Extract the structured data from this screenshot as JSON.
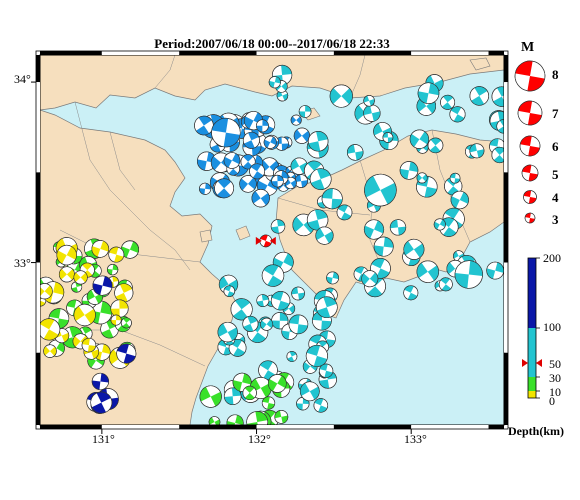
{
  "title": "Period:2007/06/18 00:00--2017/06/18 22:33",
  "map": {
    "lat_labels": [
      "34°",
      "33°"
    ],
    "lon_labels": [
      "131°",
      "132°",
      "133°"
    ],
    "colors": {
      "sea": "#cbf0f6",
      "land": "#f6dfbe",
      "coast": "#7a7a7a",
      "depth_0_10": "#f2e400",
      "depth_10_30": "#39e02a",
      "depth_30_100": "#22c4d0",
      "depth_30_100_dark": "#1a8fe0",
      "depth_100_200": "#0a17a8",
      "latest": "#ff0000"
    }
  },
  "magnitude_legend": {
    "heading": "M",
    "labels": [
      "8",
      "7",
      "6",
      "5",
      "4",
      "3"
    ]
  },
  "depth_legend": {
    "tick_labels": [
      "200",
      "100",
      "50",
      "30",
      "10",
      "0"
    ],
    "axis_label": "Depth(km)"
  },
  "chart_data": {
    "type": "map",
    "title": "Period:2007/06/18 00:00--2017/06/18 22:33",
    "lon_range": [
      130.6,
      133.6
    ],
    "lat_range": [
      32.1,
      34.15
    ],
    "lat_ticks": [
      34,
      33
    ],
    "lon_ticks": [
      131,
      132,
      133
    ],
    "legend": "right",
    "latest_event": {
      "lon": 132.06,
      "lat": 33.12
    },
    "clusters": [
      {
        "name": "",
        "depth_class": "30-100",
        "color": "#1a8fe0",
        "lon": [
          131.6,
          132.3
        ],
        "lat": [
          33.35,
          33.8
        ],
        "count": 55
      },
      {
        "name": "",
        "depth_class": "30-100",
        "color": "#22c4d0",
        "lon": [
          132.1,
          133.6
        ],
        "lat": [
          32.8,
          34.05
        ],
        "count": 75
      },
      {
        "name": "",
        "depth_class": "30-100",
        "color": "#22c4d0",
        "lon": [
          131.8,
          132.5
        ],
        "lat": [
          32.2,
          32.9
        ],
        "count": 45
      },
      {
        "name": "",
        "depth_class": "10-30",
        "color": "#39e02a",
        "lon": [
          130.6,
          131.2
        ],
        "lat": [
          32.45,
          33.1
        ],
        "count": 30
      },
      {
        "name": "",
        "depth_class": "0-10",
        "color": "#f2e400",
        "lon": [
          130.6,
          131.2
        ],
        "lat": [
          32.45,
          33.1
        ],
        "count": 24
      },
      {
        "name": "",
        "depth_class": "10-30",
        "color": "#39e02a",
        "lon": [
          131.7,
          132.2
        ],
        "lat": [
          32.1,
          32.35
        ],
        "count": 16
      },
      {
        "name": "",
        "depth_class": "100-200",
        "color": "#0a17a8",
        "lon": [
          130.95,
          131.2
        ],
        "lat": [
          32.2,
          32.95
        ],
        "count": 8
      }
    ]
  }
}
